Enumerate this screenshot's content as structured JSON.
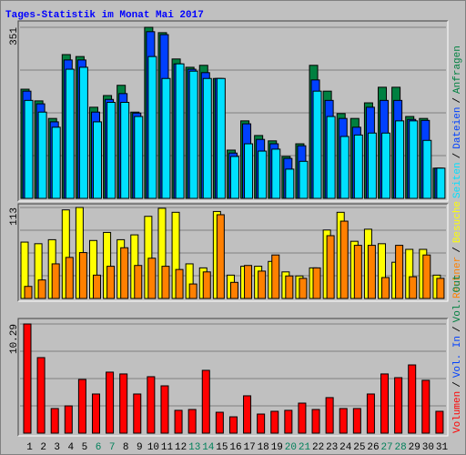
{
  "chart_data": {
    "type": "bar",
    "title": "Tages-Statistik im Monat Mai 2017",
    "categories": [
      "1",
      "2",
      "3",
      "4",
      "5",
      "6",
      "7",
      "8",
      "9",
      "10",
      "11",
      "12",
      "13",
      "14",
      "15",
      "16",
      "17",
      "18",
      "19",
      "20",
      "21",
      "22",
      "23",
      "24",
      "25",
      "26",
      "27",
      "28",
      "29",
      "30",
      "31"
    ],
    "category_colors": [
      "#000000",
      "#000000",
      "#000000",
      "#000000",
      "#000000",
      "#00805a",
      "#00805a",
      "#000000",
      "#000000",
      "#000000",
      "#000000",
      "#000000",
      "#00805a",
      "#00805a",
      "#000000",
      "#000000",
      "#000000",
      "#000000",
      "#000000",
      "#00805a",
      "#00805a",
      "#000000",
      "#000000",
      "#000000",
      "#000000",
      "#000000",
      "#00805a",
      "#00805a",
      "#000000",
      "#000000",
      "#000000"
    ],
    "legend_separator": "/",
    "panels": [
      {
        "ylim": [
          0,
          351
        ],
        "yticks": [
          351
        ],
        "series": [
          {
            "name": "Seiten",
            "color": "#00e0ff",
            "values": [
              201,
              177,
              146,
              265,
              269,
              157,
              197,
              197,
              168,
              291,
              246,
              276,
              261,
              246,
              246,
              86,
              112,
              97,
              101,
              60,
              76,
              220,
              168,
              127,
              130,
              134,
              134,
              159,
              159,
              119,
              62
            ]
          },
          {
            "name": "Dateien",
            "color": "#0040ff",
            "values": [
              220,
              194,
              157,
              284,
              284,
              177,
              203,
              215,
              175,
              342,
              336,
              276,
              265,
              258,
              246,
              93,
              153,
              121,
              112,
              82,
              108,
              243,
              201,
              164,
              146,
              187,
              201,
              201,
              162,
              160,
              62
            ]
          },
          {
            "name": "Anfragen",
            "color": "#008040",
            "values": [
              224,
              200,
              164,
              295,
              291,
              187,
              211,
              232,
              177,
              351,
              340,
              286,
              269,
              273,
              246,
              99,
              159,
              129,
              118,
              86,
              112,
              273,
              220,
              174,
              164,
              196,
              228,
              228,
              168,
              164,
              62
            ]
          }
        ]
      },
      {
        "ylim": [
          0,
          113
        ],
        "yticks": [
          113
        ],
        "series": [
          {
            "name": "Rechner",
            "color": "#ff8000",
            "values": [
              15,
              23,
              43,
              51,
              57,
              29,
              40,
              63,
              41,
              50,
              40,
              36,
              18,
              33,
              104,
              20,
              41,
              34,
              54,
              28,
              25,
              38,
              78,
              96,
              66,
              66,
              26,
              66,
              27,
              54,
              25
            ]
          },
          {
            "name": "Besuche",
            "color": "#ffff00",
            "values": [
              70,
              68,
              73,
              110,
              113,
              72,
              82,
              73,
              79,
              102,
              112,
              107,
              43,
              38,
              108,
              29,
              40,
              40,
              46,
              33,
              28,
              38,
              85,
              107,
              71,
              86,
              68,
              45,
              61,
              61,
              29
            ]
          }
        ]
      },
      {
        "ylim": [
          0,
          10.29
        ],
        "yticks": [
          10.29
        ],
        "series": [
          {
            "name": "Volumen",
            "color": "#ff0000",
            "values": [
              10.29,
              7.12,
              2.32,
              2.57,
              5.06,
              3.69,
              5.75,
              5.58,
              3.69,
              5.32,
              4.46,
              2.15,
              2.23,
              5.92,
              1.97,
              1.54,
              3.52,
              1.8,
              2.06,
              2.15,
              2.83,
              2.23,
              3.35,
              2.32,
              2.32,
              3.69,
              5.58,
              5.23,
              6.43,
              4.98,
              2.06
            ]
          }
        ],
        "extra_labels": [
          {
            "name": "Vol. In",
            "color": "#0040ff"
          },
          {
            "name": "Vol. Out",
            "color": "#008040"
          }
        ]
      }
    ]
  }
}
